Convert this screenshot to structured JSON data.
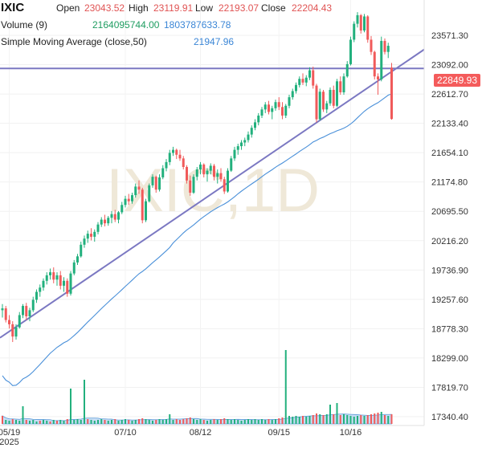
{
  "legend": {
    "symbol": "IXIC",
    "open_label": "Open",
    "open_value": "23043.52",
    "high_label": "High",
    "high_value": "23119.91",
    "low_label": "Low",
    "low_value": "22193.07",
    "close_label": "Close",
    "close_value": "22204.43",
    "volume_label": "Volume (9)",
    "volume_value_1": "2164095744.00",
    "volume_value_2": "1803787633.78",
    "sma_label": "Simple Moving Average (close,50)",
    "sma_value": "21947.96"
  },
  "watermark": "IXIC,1D",
  "price_tag": "22849.93",
  "colors": {
    "up": "#22b07d",
    "down": "#f05a5a",
    "sma": "#4a90d9",
    "trend": "#7b78c2",
    "volume_area": "#9bc3ec"
  },
  "chart_data": {
    "type": "candlestick",
    "y_ticks": [
      17340.4,
      17819.7,
      18299.0,
      18778.3,
      19257.6,
      19736.9,
      20216.2,
      20695.5,
      21174.8,
      21654.1,
      22133.4,
      22612.7,
      23092.0,
      23571.3
    ],
    "ylim": [
      17250,
      24000
    ],
    "x_ticks": [
      {
        "label": "05/19",
        "sublabel": "2025",
        "index": 2
      },
      {
        "label": "07/10",
        "index": 36
      },
      {
        "label": "08/12",
        "index": 58
      },
      {
        "label": "09/15",
        "index": 81
      },
      {
        "label": "10/16",
        "index": 102
      }
    ],
    "candles": [
      [
        19080,
        19180,
        18960,
        19110
      ],
      [
        19110,
        19150,
        18880,
        18920
      ],
      [
        18920,
        19000,
        18780,
        18850
      ],
      [
        18850,
        18900,
        18560,
        18650
      ],
      [
        18650,
        18850,
        18600,
        18800
      ],
      [
        18800,
        19050,
        18780,
        19000
      ],
      [
        19000,
        19180,
        18950,
        19150
      ],
      [
        19150,
        19200,
        18920,
        18980
      ],
      [
        18980,
        19120,
        18900,
        19080
      ],
      [
        19080,
        19300,
        19050,
        19250
      ],
      [
        19250,
        19420,
        19200,
        19380
      ],
      [
        19380,
        19500,
        19300,
        19450
      ],
      [
        19450,
        19600,
        19400,
        19560
      ],
      [
        19560,
        19700,
        19500,
        19650
      ],
      [
        19650,
        19760,
        19580,
        19700
      ],
      [
        19700,
        19780,
        19520,
        19580
      ],
      [
        19580,
        19700,
        19480,
        19650
      ],
      [
        19650,
        19720,
        19420,
        19480
      ],
      [
        19480,
        19620,
        19380,
        19560
      ],
      [
        19560,
        19600,
        19300,
        19350
      ],
      [
        19350,
        19720,
        19320,
        19680
      ],
      [
        19680,
        19900,
        19650,
        19860
      ],
      [
        19860,
        20000,
        19820,
        19960
      ],
      [
        19960,
        20200,
        19940,
        20150
      ],
      [
        20150,
        20300,
        20100,
        20250
      ],
      [
        20250,
        20380,
        20180,
        20330
      ],
      [
        20330,
        20420,
        20220,
        20280
      ],
      [
        20280,
        20400,
        20200,
        20360
      ],
      [
        20360,
        20520,
        20320,
        20480
      ],
      [
        20480,
        20600,
        20440,
        20560
      ],
      [
        20560,
        20640,
        20450,
        20500
      ],
      [
        20500,
        20620,
        20460,
        20590
      ],
      [
        20590,
        20700,
        20500,
        20650
      ],
      [
        20650,
        20720,
        20520,
        20560
      ],
      [
        20560,
        20700,
        20500,
        20680
      ],
      [
        20680,
        20850,
        20650,
        20800
      ],
      [
        20800,
        20950,
        20760,
        20900
      ],
      [
        20900,
        20980,
        20800,
        20860
      ],
      [
        20860,
        21000,
        20820,
        20960
      ],
      [
        20960,
        21150,
        20920,
        21100
      ],
      [
        21100,
        21200,
        20980,
        21050
      ],
      [
        21050,
        21080,
        20500,
        20550
      ],
      [
        20550,
        20900,
        20520,
        20860
      ],
      [
        20860,
        21150,
        20840,
        21120
      ],
      [
        21120,
        21300,
        21080,
        21260
      ],
      [
        21260,
        21280,
        21000,
        21050
      ],
      [
        21050,
        21300,
        21020,
        21250
      ],
      [
        21250,
        21450,
        21220,
        21400
      ],
      [
        21400,
        21550,
        21350,
        21500
      ],
      [
        21500,
        21700,
        21450,
        21650
      ],
      [
        21650,
        21750,
        21600,
        21700
      ],
      [
        21700,
        21720,
        21550,
        21620
      ],
      [
        21620,
        21700,
        21520,
        21560
      ],
      [
        21560,
        21600,
        21380,
        21420
      ],
      [
        21420,
        21450,
        21150,
        21200
      ],
      [
        21200,
        21280,
        20950,
        21000
      ],
      [
        21000,
        21300,
        20980,
        21260
      ],
      [
        21260,
        21420,
        21200,
        21380
      ],
      [
        21380,
        21500,
        21300,
        21460
      ],
      [
        21460,
        21480,
        21250,
        21300
      ],
      [
        21300,
        21400,
        21180,
        21360
      ],
      [
        21360,
        21480,
        21300,
        21440
      ],
      [
        21440,
        21470,
        21200,
        21260
      ],
      [
        21260,
        21380,
        21150,
        21320
      ],
      [
        21320,
        21400,
        21180,
        21220
      ],
      [
        21220,
        21260,
        20980,
        21020
      ],
      [
        21020,
        21400,
        21000,
        21360
      ],
      [
        21360,
        21600,
        21340,
        21560
      ],
      [
        21560,
        21750,
        21520,
        21700
      ],
      [
        21700,
        21800,
        21620,
        21760
      ],
      [
        21760,
        21860,
        21700,
        21820
      ],
      [
        21820,
        21900,
        21760,
        21860
      ],
      [
        21860,
        22000,
        21820,
        21950
      ],
      [
        21950,
        22100,
        21900,
        22060
      ],
      [
        22060,
        22200,
        22020,
        22150
      ],
      [
        22150,
        22300,
        22100,
        22260
      ],
      [
        22260,
        22400,
        22220,
        22360
      ],
      [
        22360,
        22480,
        22300,
        22440
      ],
      [
        22440,
        22500,
        22280,
        22320
      ],
      [
        22320,
        22420,
        22200,
        22380
      ],
      [
        22380,
        22520,
        22340,
        22480
      ],
      [
        22480,
        22560,
        22350,
        22400
      ],
      [
        22400,
        22480,
        22200,
        22260
      ],
      [
        22260,
        22450,
        22220,
        22420
      ],
      [
        22420,
        22600,
        22380,
        22560
      ],
      [
        22560,
        22700,
        22520,
        22660
      ],
      [
        22660,
        22800,
        22620,
        22760
      ],
      [
        22760,
        22900,
        22720,
        22860
      ],
      [
        22860,
        22950,
        22760,
        22800
      ],
      [
        22800,
        22920,
        22740,
        22880
      ],
      [
        22880,
        23050,
        22840,
        23000
      ],
      [
        23000,
        23060,
        22700,
        22750
      ],
      [
        22750,
        22780,
        22150,
        22200
      ],
      [
        22200,
        22700,
        22180,
        22650
      ],
      [
        22650,
        22680,
        22320,
        22360
      ],
      [
        22360,
        22500,
        22300,
        22460
      ],
      [
        22460,
        22720,
        22420,
        22680
      ],
      [
        22680,
        22750,
        22380,
        22420
      ],
      [
        22420,
        22860,
        22400,
        22820
      ],
      [
        22820,
        22900,
        22600,
        22640
      ],
      [
        22640,
        22950,
        22600,
        22900
      ],
      [
        22900,
        23150,
        22880,
        23100
      ],
      [
        23100,
        23550,
        23080,
        23500
      ],
      [
        23500,
        23800,
        23460,
        23760
      ],
      [
        23760,
        23950,
        23700,
        23900
      ],
      [
        23900,
        23920,
        23600,
        23650
      ],
      [
        23650,
        23920,
        23620,
        23880
      ],
      [
        23880,
        23900,
        23450,
        23500
      ],
      [
        23500,
        23560,
        23250,
        23300
      ],
      [
        23300,
        23320,
        22850,
        22900
      ],
      [
        22900,
        22950,
        22600,
        22850
      ],
      [
        22850,
        23550,
        22820,
        23480
      ],
      [
        23480,
        23520,
        23260,
        23300
      ],
      [
        23300,
        23450,
        23200,
        23400
      ],
      [
        23043.52,
        23119.91,
        22193.07,
        22204.43
      ]
    ],
    "volume": [
      [
        0.1,
        0
      ],
      [
        0.05,
        1
      ],
      [
        0.04,
        1
      ],
      [
        0.06,
        0
      ],
      [
        0.05,
        1
      ],
      [
        0.04,
        1
      ],
      [
        0.22,
        1
      ],
      [
        0.05,
        0
      ],
      [
        0.04,
        1
      ],
      [
        0.05,
        1
      ],
      [
        0.03,
        1
      ],
      [
        0.04,
        0
      ],
      [
        0.05,
        1
      ],
      [
        0.04,
        1
      ],
      [
        0.03,
        0
      ],
      [
        0.05,
        1
      ],
      [
        0.04,
        0
      ],
      [
        0.05,
        1
      ],
      [
        0.04,
        1
      ],
      [
        0.06,
        0
      ],
      [
        0.44,
        1
      ],
      [
        0.05,
        1
      ],
      [
        0.06,
        1
      ],
      [
        0.05,
        1
      ],
      [
        0.55,
        1
      ],
      [
        0.06,
        0
      ],
      [
        0.05,
        1
      ],
      [
        0.04,
        1
      ],
      [
        0.05,
        1
      ],
      [
        0.06,
        1
      ],
      [
        0.05,
        0
      ],
      [
        0.04,
        1
      ],
      [
        0.05,
        1
      ],
      [
        0.06,
        0
      ],
      [
        0.04,
        1
      ],
      [
        0.05,
        1
      ],
      [
        0.06,
        1
      ],
      [
        0.05,
        0
      ],
      [
        0.04,
        1
      ],
      [
        0.05,
        1
      ],
      [
        0.06,
        0
      ],
      [
        0.07,
        0
      ],
      [
        0.06,
        1
      ],
      [
        0.05,
        1
      ],
      [
        0.04,
        1
      ],
      [
        0.05,
        0
      ],
      [
        0.06,
        1
      ],
      [
        0.05,
        1
      ],
      [
        0.06,
        1
      ],
      [
        0.12,
        1
      ],
      [
        0.05,
        1
      ],
      [
        0.06,
        0
      ],
      [
        0.05,
        0
      ],
      [
        0.06,
        0
      ],
      [
        0.07,
        0
      ],
      [
        0.08,
        0
      ],
      [
        0.06,
        1
      ],
      [
        0.05,
        1
      ],
      [
        0.06,
        1
      ],
      [
        0.05,
        0
      ],
      [
        0.04,
        1
      ],
      [
        0.05,
        1
      ],
      [
        0.06,
        0
      ],
      [
        0.05,
        1
      ],
      [
        0.06,
        0
      ],
      [
        0.07,
        0
      ],
      [
        0.06,
        1
      ],
      [
        0.05,
        1
      ],
      [
        0.06,
        1
      ],
      [
        0.05,
        1
      ],
      [
        0.04,
        1
      ],
      [
        0.05,
        1
      ],
      [
        0.06,
        1
      ],
      [
        0.05,
        1
      ],
      [
        0.06,
        1
      ],
      [
        0.05,
        1
      ],
      [
        0.06,
        1
      ],
      [
        0.05,
        1
      ],
      [
        0.06,
        0
      ],
      [
        0.05,
        1
      ],
      [
        0.06,
        1
      ],
      [
        0.07,
        0
      ],
      [
        0.08,
        0
      ],
      [
        0.92,
        1
      ],
      [
        0.1,
        1
      ],
      [
        0.09,
        1
      ],
      [
        0.1,
        1
      ],
      [
        0.09,
        1
      ],
      [
        0.1,
        0
      ],
      [
        0.09,
        1
      ],
      [
        0.1,
        1
      ],
      [
        0.11,
        0
      ],
      [
        0.13,
        0
      ],
      [
        0.12,
        1
      ],
      [
        0.11,
        0
      ],
      [
        0.12,
        1
      ],
      [
        0.24,
        1
      ],
      [
        0.12,
        0
      ],
      [
        0.26,
        1
      ],
      [
        0.11,
        0
      ],
      [
        0.12,
        1
      ],
      [
        0.11,
        1
      ],
      [
        0.1,
        1
      ],
      [
        0.09,
        1
      ],
      [
        0.1,
        1
      ],
      [
        0.11,
        0
      ],
      [
        0.1,
        1
      ],
      [
        0.11,
        0
      ],
      [
        0.12,
        0
      ],
      [
        0.13,
        0
      ],
      [
        0.14,
        0
      ],
      [
        0.15,
        1
      ],
      [
        0.11,
        0
      ],
      [
        0.1,
        1
      ],
      [
        0.12,
        0
      ]
    ],
    "trendlines": [
      {
        "from": [
          0,
          18630
        ],
        "to": [
          120,
          23340
        ]
      },
      {
        "from": [
          0,
          23030
        ],
        "to": [
          120,
          23030
        ]
      }
    ]
  }
}
